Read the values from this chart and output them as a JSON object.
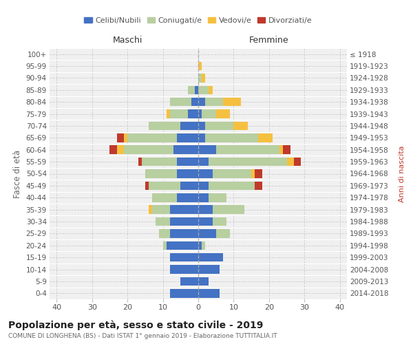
{
  "age_groups": [
    "100+",
    "95-99",
    "90-94",
    "85-89",
    "80-84",
    "75-79",
    "70-74",
    "65-69",
    "60-64",
    "55-59",
    "50-54",
    "45-49",
    "40-44",
    "35-39",
    "30-34",
    "25-29",
    "20-24",
    "15-19",
    "10-14",
    "5-9",
    "0-4"
  ],
  "birth_years": [
    "≤ 1918",
    "1919-1923",
    "1924-1928",
    "1929-1933",
    "1934-1938",
    "1939-1943",
    "1944-1948",
    "1949-1953",
    "1954-1958",
    "1959-1963",
    "1964-1968",
    "1969-1973",
    "1974-1978",
    "1979-1983",
    "1984-1988",
    "1989-1993",
    "1994-1998",
    "1999-2003",
    "2004-2008",
    "2009-2013",
    "2014-2018"
  ],
  "maschi": {
    "celibi": [
      0,
      0,
      0,
      1,
      2,
      3,
      5,
      6,
      7,
      6,
      6,
      5,
      6,
      8,
      8,
      8,
      9,
      8,
      8,
      5,
      8
    ],
    "coniugati": [
      0,
      0,
      0,
      2,
      6,
      5,
      9,
      14,
      14,
      10,
      9,
      9,
      7,
      5,
      4,
      3,
      1,
      0,
      0,
      0,
      0
    ],
    "vedovi": [
      0,
      0,
      0,
      0,
      0,
      1,
      0,
      1,
      2,
      0,
      0,
      0,
      0,
      1,
      0,
      0,
      0,
      0,
      0,
      0,
      0
    ],
    "divorziati": [
      0,
      0,
      0,
      0,
      0,
      0,
      0,
      2,
      2,
      1,
      0,
      1,
      0,
      0,
      0,
      0,
      0,
      0,
      0,
      0,
      0
    ]
  },
  "femmine": {
    "nubili": [
      0,
      0,
      0,
      0,
      2,
      1,
      2,
      2,
      5,
      3,
      4,
      3,
      3,
      4,
      4,
      5,
      1,
      7,
      6,
      3,
      6
    ],
    "coniugate": [
      0,
      0,
      1,
      3,
      5,
      4,
      8,
      15,
      18,
      22,
      11,
      13,
      5,
      9,
      4,
      4,
      1,
      0,
      0,
      0,
      0
    ],
    "vedove": [
      0,
      1,
      1,
      1,
      5,
      4,
      4,
      4,
      1,
      2,
      1,
      0,
      0,
      0,
      0,
      0,
      0,
      0,
      0,
      0,
      0
    ],
    "divorziate": [
      0,
      0,
      0,
      0,
      0,
      0,
      0,
      0,
      2,
      2,
      2,
      2,
      0,
      0,
      0,
      0,
      0,
      0,
      0,
      0,
      0
    ]
  },
  "colors": {
    "celibi": "#4472c4",
    "coniugati": "#b8cfa0",
    "vedovi": "#f5c040",
    "divorziati": "#c0392b"
  },
  "xlim": [
    -42,
    42
  ],
  "xticks": [
    -40,
    -30,
    -20,
    -10,
    0,
    10,
    20,
    30,
    40
  ],
  "xticklabels": [
    "40",
    "30",
    "20",
    "10",
    "0",
    "10",
    "20",
    "30",
    "40"
  ],
  "title": "Popolazione per età, sesso e stato civile - 2019",
  "subtitle": "COMUNE DI LONGHENA (BS) - Dati ISTAT 1° gennaio 2019 - Elaborazione TUTTITALIA.IT",
  "ylabel_left": "Fasce di età",
  "ylabel_right": "Anni di nascita",
  "legend_labels": [
    "Celibi/Nubili",
    "Coniugati/e",
    "Vedovi/e",
    "Divorziati/e"
  ],
  "maschi_label": "Maschi",
  "femmine_label": "Femmine",
  "bg_color": "#f0f0f0",
  "title_fontsize": 10,
  "subtitle_fontsize": 6.5
}
